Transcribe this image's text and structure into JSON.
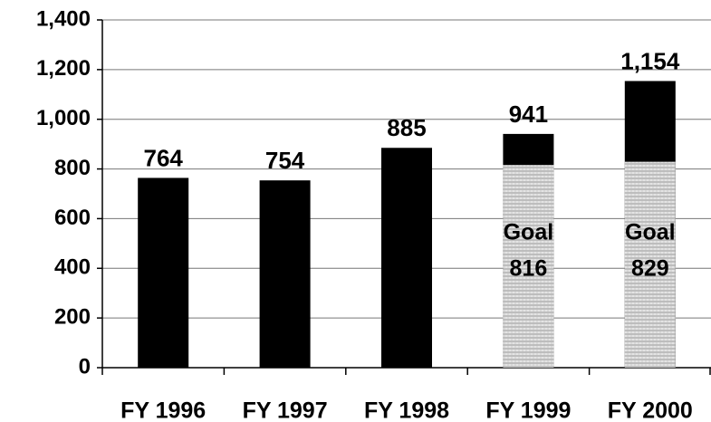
{
  "chart_data": {
    "type": "bar",
    "categories": [
      "FY 1996",
      "FY 1997",
      "FY 1998",
      "FY 1999",
      "FY 2000"
    ],
    "series": [
      {
        "color": "#000000",
        "values": [
          764,
          754,
          885,
          941,
          1154
        ],
        "value_labels": [
          "764",
          "754",
          "885",
          "941",
          "1,154"
        ]
      },
      {
        "color": "#d4d4d4",
        "label": "Goal",
        "values": [
          null,
          null,
          null,
          816,
          829
        ]
      }
    ],
    "ylim": [
      0,
      1400
    ],
    "yticks": [
      0,
      200,
      400,
      600,
      800,
      {
        "value": 1000,
        "label": "1,000"
      },
      {
        "value": 1200,
        "label": "1,200"
      },
      {
        "value": 1400,
        "label": "1,400"
      }
    ],
    "grid": true
  }
}
